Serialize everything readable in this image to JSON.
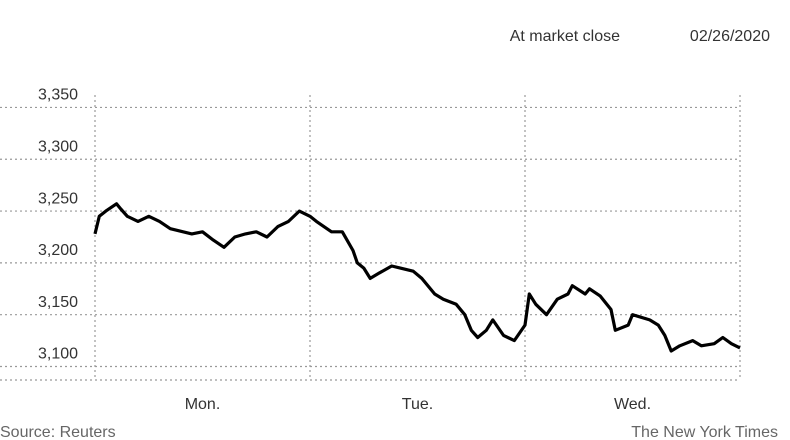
{
  "chart_data": {
    "type": "line",
    "note": "At market close",
    "date": "02/26/2020",
    "source": "Source: Reuters",
    "credit": "The New York Times",
    "x": [
      0,
      0.02,
      0.05,
      0.1,
      0.12,
      0.15,
      0.2,
      0.25,
      0.3,
      0.35,
      0.45,
      0.5,
      0.55,
      0.6,
      0.65,
      0.7,
      0.75,
      0.8,
      0.85,
      0.9,
      0.95,
      1.0,
      1.03,
      1.1,
      1.15,
      1.2,
      1.22,
      1.25,
      1.28,
      1.32,
      1.38,
      1.42,
      1.48,
      1.52,
      1.58,
      1.62,
      1.68,
      1.72,
      1.75,
      1.78,
      1.82,
      1.85,
      1.9,
      1.95,
      2.0,
      2.02,
      2.05,
      2.1,
      2.15,
      2.2,
      2.22,
      2.28,
      2.3,
      2.35,
      2.4,
      2.42,
      2.48,
      2.5,
      2.58,
      2.62,
      2.65,
      2.68,
      2.72,
      2.78,
      2.82,
      2.88,
      2.92,
      2.96,
      3.0
    ],
    "values": [
      3228,
      3245,
      3250,
      3257,
      3252,
      3245,
      3240,
      3245,
      3240,
      3233,
      3228,
      3230,
      3222,
      3215,
      3225,
      3228,
      3230,
      3225,
      3235,
      3240,
      3250,
      3245,
      3240,
      3230,
      3230,
      3212,
      3200,
      3195,
      3185,
      3190,
      3197,
      3195,
      3192,
      3185,
      3170,
      3165,
      3160,
      3150,
      3135,
      3128,
      3135,
      3145,
      3130,
      3125,
      3140,
      3170,
      3160,
      3150,
      3165,
      3170,
      3178,
      3170,
      3175,
      3168,
      3155,
      3135,
      3140,
      3150,
      3145,
      3140,
      3130,
      3115,
      3120,
      3125,
      3120,
      3122,
      3128,
      3122,
      3118
    ],
    "color": "#000000",
    "xlim": [
      0,
      3
    ],
    "xticks": [
      {
        "value": 0.5,
        "label": "Mon."
      },
      {
        "value": 1.5,
        "label": "Tue."
      },
      {
        "value": 2.5,
        "label": "Wed."
      }
    ],
    "xgrid": [
      0,
      1,
      2,
      3
    ],
    "ylim": [
      3087,
      3362
    ],
    "yticks": [
      {
        "value": 3100,
        "label": "3,100"
      },
      {
        "value": 3150,
        "label": "3,150"
      },
      {
        "value": 3200,
        "label": "3,200"
      },
      {
        "value": 3250,
        "label": "3,250"
      },
      {
        "value": 3300,
        "label": "3,300"
      },
      {
        "value": 3350,
        "label": "3,350"
      }
    ],
    "grid": true
  }
}
